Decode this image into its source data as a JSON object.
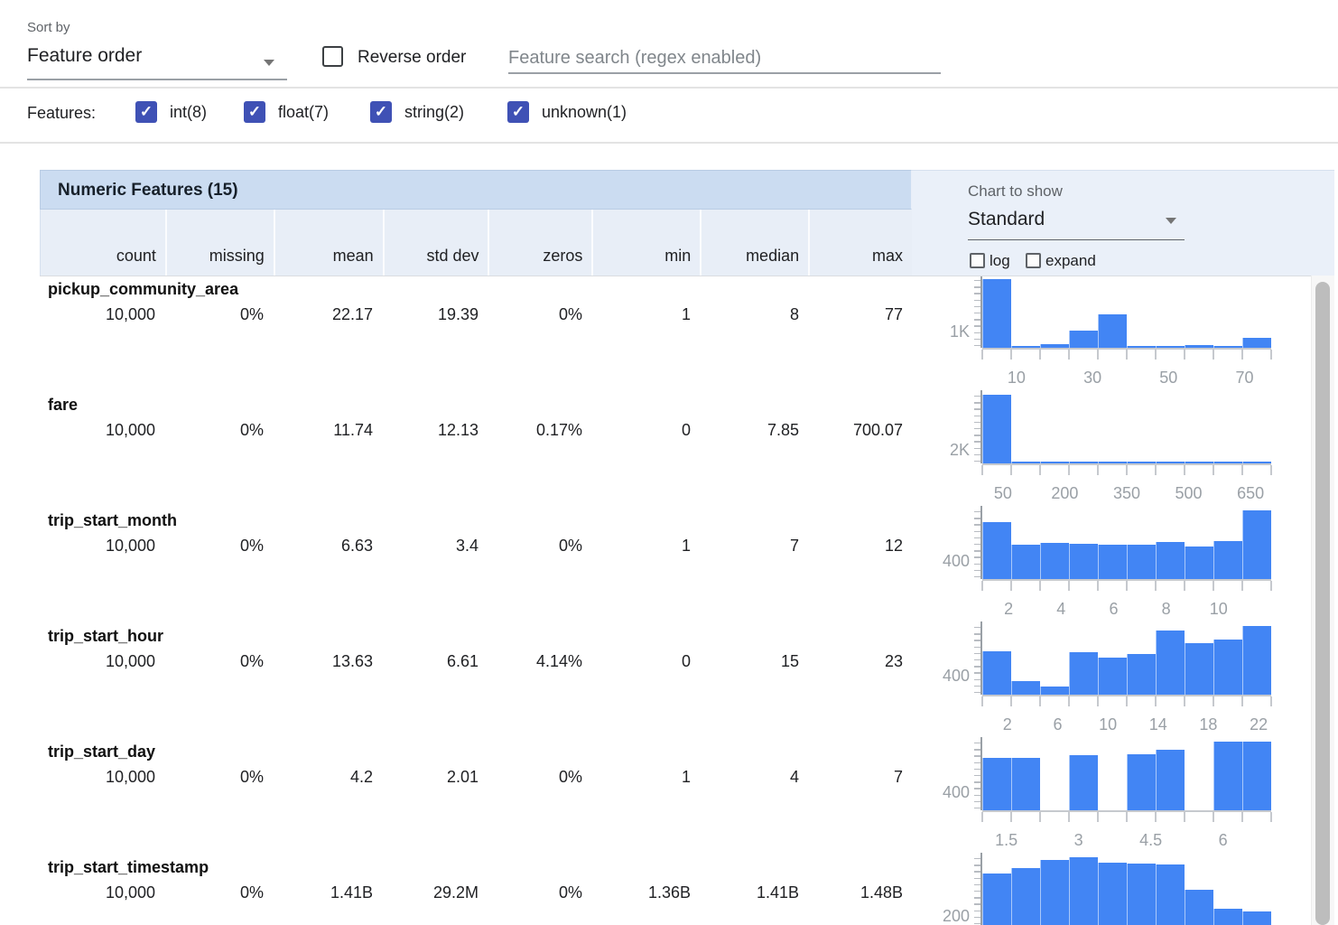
{
  "toolbar": {
    "sort_by_label": "Sort by",
    "sort_by_value": "Feature order",
    "reverse_order_label": "Reverse order",
    "search_placeholder": "Feature search (regex enabled)"
  },
  "filters": {
    "label": "Features:",
    "items": [
      {
        "label": "int(8)",
        "checked": true
      },
      {
        "label": "float(7)",
        "checked": true
      },
      {
        "label": "string(2)",
        "checked": true
      },
      {
        "label": "unknown(1)",
        "checked": true
      }
    ]
  },
  "table": {
    "title": "Numeric Features (15)",
    "columns": [
      "count",
      "missing",
      "mean",
      "std dev",
      "zeros",
      "min",
      "median",
      "max"
    ],
    "chart_controls": {
      "label": "Chart to show",
      "selected": "Standard",
      "log_label": "log",
      "expand_label": "expand"
    }
  },
  "features": [
    {
      "name": "pickup_community_area",
      "stats": [
        "10,000",
        "0%",
        "22.17",
        "19.39",
        "0%",
        "1",
        "8",
        "77"
      ]
    },
    {
      "name": "fare",
      "stats": [
        "10,000",
        "0%",
        "11.74",
        "12.13",
        "0.17%",
        "0",
        "7.85",
        "700.07"
      ]
    },
    {
      "name": "trip_start_month",
      "stats": [
        "10,000",
        "0%",
        "6.63",
        "3.4",
        "0%",
        "1",
        "7",
        "12"
      ]
    },
    {
      "name": "trip_start_hour",
      "stats": [
        "10,000",
        "0%",
        "13.63",
        "6.61",
        "4.14%",
        "0",
        "15",
        "23"
      ]
    },
    {
      "name": "trip_start_day",
      "stats": [
        "10,000",
        "0%",
        "4.2",
        "2.01",
        "0%",
        "1",
        "4",
        "7"
      ]
    },
    {
      "name": "trip_start_timestamp",
      "stats": [
        "10,000",
        "0%",
        "1.41B",
        "29.2M",
        "0%",
        "1.36B",
        "1.41B",
        "1.48B"
      ]
    }
  ],
  "chart_data": [
    {
      "type": "bar",
      "feature": "pickup_community_area",
      "x_min": 1,
      "x_max": 77,
      "y_axis_label": "1K",
      "y_axis_value": 1000,
      "y_max": 4300,
      "x_tick_labels": [
        10,
        30,
        50,
        70
      ],
      "values": [
        4300,
        110,
        220,
        1050,
        2100,
        70,
        60,
        180,
        70,
        620
      ]
    },
    {
      "type": "bar",
      "feature": "fare",
      "x_min": 0,
      "x_max": 700,
      "y_axis_label": "2K",
      "y_axis_value": 2000,
      "y_max": 9820,
      "x_tick_labels": [
        50,
        200,
        350,
        500,
        650
      ],
      "values": [
        9820,
        100,
        40,
        15,
        10,
        5,
        3,
        3,
        2,
        2
      ]
    },
    {
      "type": "bar",
      "feature": "trip_start_month",
      "x_min": 1,
      "x_max": 12,
      "y_axis_label": "400",
      "y_axis_value": 400,
      "y_max": 1500,
      "x_tick_labels": [
        2,
        4,
        6,
        8,
        10
      ],
      "values": [
        1240,
        745,
        780,
        770,
        745,
        745,
        800,
        715,
        835,
        1500
      ]
    },
    {
      "type": "bar",
      "feature": "trip_start_hour",
      "x_min": 0,
      "x_max": 23,
      "y_axis_label": "400",
      "y_axis_value": 400,
      "y_max": 1465,
      "x_tick_labels": [
        2,
        6,
        10,
        14,
        18,
        22
      ],
      "values": [
        930,
        295,
        170,
        915,
        790,
        865,
        1370,
        1090,
        1185,
        1465
      ]
    },
    {
      "type": "bar",
      "feature": "trip_start_day",
      "x_min": 1,
      "x_max": 7,
      "y_axis_label": "400",
      "y_axis_value": 400,
      "y_max": 1500,
      "x_tick_labels": [
        1.5,
        3,
        4.5,
        6
      ],
      "values": [
        1150,
        1150,
        0,
        1200,
        0,
        1222,
        1327,
        0,
        1500,
        1500
      ]
    },
    {
      "type": "bar",
      "feature": "trip_start_timestamp",
      "x_min": 0,
      "x_max": 10,
      "y_axis_label": "200",
      "y_axis_value": 200,
      "y_max": 1345,
      "x_tick_labels": [],
      "values": [
        1020,
        1130,
        1290,
        1345,
        1240,
        1220,
        1200,
        710,
        330,
        290
      ]
    }
  ],
  "colors": {
    "accent_indigo": "#3f51b5",
    "bar_blue": "#4285f4",
    "title_band": "#cbdcf1",
    "header_row": "#e8eef7",
    "right_panel": "#eaf0f9"
  }
}
